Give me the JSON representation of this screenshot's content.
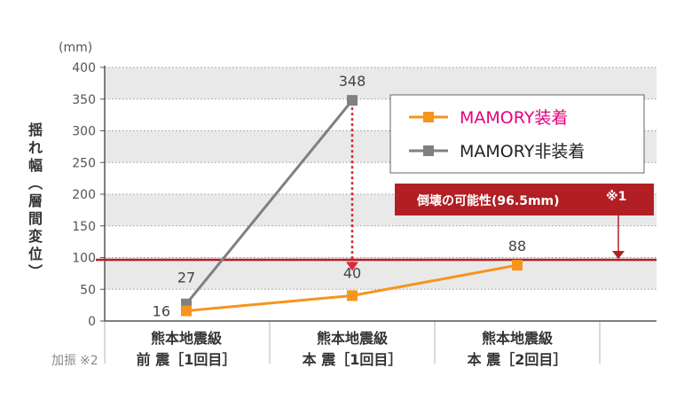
{
  "chart_data": {
    "type": "line",
    "unit_label": "(mm)",
    "ylabel": "揺れ幅(層間変位)",
    "ylim": [
      0,
      400
    ],
    "yticks": [
      0,
      50,
      100,
      150,
      200,
      250,
      300,
      350,
      400
    ],
    "x_prefix_label": "加振",
    "x_prefix_note": "※2",
    "categories": [
      {
        "line1": "熊本地震級",
        "line2": "前 震［1回目］"
      },
      {
        "line1": "熊本地震級",
        "line2": "本 震［1回目］"
      },
      {
        "line1": "熊本地震級",
        "line2": "本 震［2回目］"
      }
    ],
    "series": [
      {
        "name": "MAMORY装着",
        "color": "#f7941d",
        "legend_text_color": "#e6007e",
        "values": [
          16,
          40,
          88
        ],
        "labels": [
          "16",
          "40",
          "88"
        ]
      },
      {
        "name": "MAMORY非装着",
        "color": "#808080",
        "legend_text_color": "#222222",
        "values": [
          27,
          348,
          null
        ],
        "labels": [
          "27",
          "348",
          ""
        ]
      }
    ],
    "threshold": {
      "value": 96.5,
      "label": "倒壊の可能性(96.5mm)",
      "note": "※1",
      "color": "#b11f24"
    },
    "grid": true,
    "legend_position": "top-right"
  }
}
